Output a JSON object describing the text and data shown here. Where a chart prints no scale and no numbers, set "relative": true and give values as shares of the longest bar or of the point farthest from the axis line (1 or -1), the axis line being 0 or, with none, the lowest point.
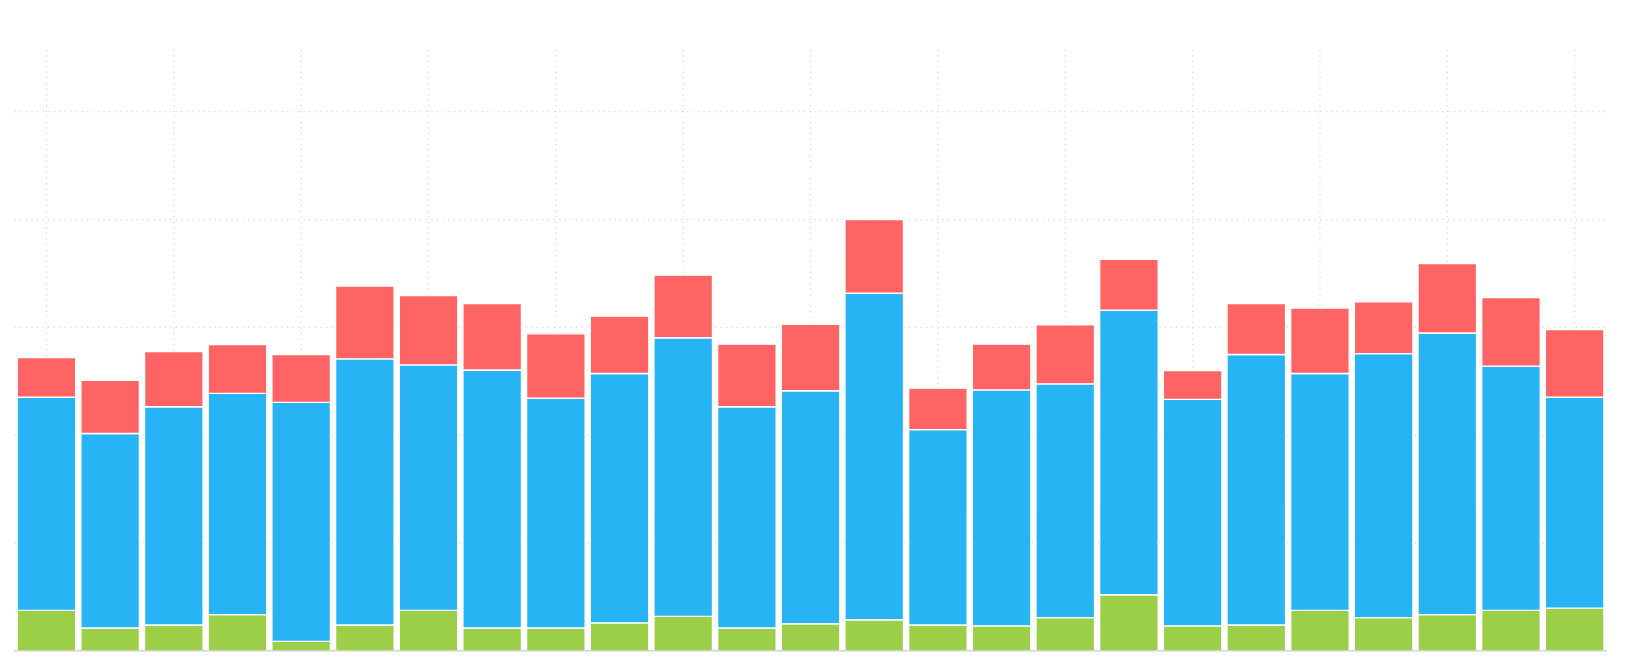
{
  "chart_data": {
    "type": "bar",
    "stacked": true,
    "relative": true,
    "grid": true,
    "categories": [
      null,
      null,
      null,
      null,
      null,
      null,
      null,
      null,
      null,
      null,
      null,
      null,
      null,
      null,
      null,
      null,
      null,
      null,
      null,
      null,
      null,
      null,
      null,
      null,
      null
    ],
    "series": [
      {
        "color": "#9bcf48",
        "values": [
          0.094,
          0.053,
          0.06,
          0.084,
          0.022,
          0.06,
          0.094,
          0.053,
          0.053,
          0.065,
          0.08,
          0.053,
          0.063,
          0.072,
          0.06,
          0.058,
          0.077,
          0.13,
          0.058,
          0.06,
          0.094,
          0.077,
          0.084,
          0.094,
          0.099
        ]
      },
      {
        "color": "#27b4f5",
        "values": [
          0.494,
          0.451,
          0.506,
          0.513,
          0.554,
          0.617,
          0.569,
          0.598,
          0.533,
          0.578,
          0.646,
          0.513,
          0.54,
          0.757,
          0.453,
          0.547,
          0.542,
          0.66,
          0.525,
          0.627,
          0.549,
          0.612,
          0.653,
          0.566,
          0.489
        ]
      },
      {
        "color": "#ff6464",
        "values": [
          0.092,
          0.123,
          0.128,
          0.113,
          0.111,
          0.169,
          0.161,
          0.154,
          0.149,
          0.133,
          0.145,
          0.145,
          0.154,
          0.171,
          0.096,
          0.106,
          0.137,
          0.118,
          0.067,
          0.118,
          0.152,
          0.12,
          0.161,
          0.159,
          0.157
        ]
      }
    ]
  }
}
